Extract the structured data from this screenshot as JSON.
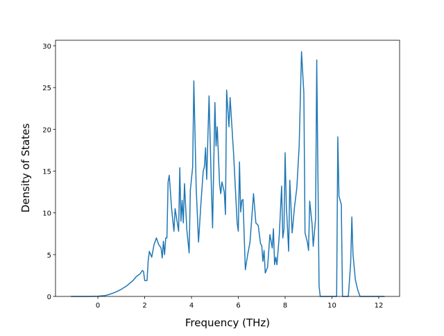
{
  "chart_data": {
    "type": "line",
    "xlabel": "Frequency (THz)",
    "ylabel": "Density of States",
    "x": [
      -1.15,
      -0.5,
      0,
      0.3,
      0.5,
      0.75,
      1.0,
      1.25,
      1.5,
      1.65,
      1.8,
      1.9,
      1.95,
      2.0,
      2.1,
      2.15,
      2.2,
      2.3,
      2.4,
      2.5,
      2.6,
      2.7,
      2.75,
      2.8,
      2.85,
      2.9,
      2.95,
      3.0,
      3.05,
      3.15,
      3.25,
      3.3,
      3.45,
      3.5,
      3.55,
      3.6,
      3.65,
      3.7,
      3.8,
      3.9,
      3.95,
      4.05,
      4.1,
      4.2,
      4.3,
      4.4,
      4.5,
      4.55,
      4.6,
      4.65,
      4.75,
      4.85,
      4.9,
      5.0,
      5.05,
      5.1,
      5.2,
      5.25,
      5.3,
      5.4,
      5.45,
      5.5,
      5.6,
      5.65,
      5.8,
      5.95,
      6.0,
      6.05,
      6.1,
      6.15,
      6.2,
      6.3,
      6.4,
      6.5,
      6.65,
      6.75,
      6.85,
      6.95,
      7.0,
      7.05,
      7.1,
      7.15,
      7.25,
      7.35,
      7.45,
      7.5,
      7.55,
      7.6,
      7.65,
      7.75,
      7.85,
      7.9,
      7.95,
      8.0,
      8.05,
      8.15,
      8.2,
      8.3,
      8.4,
      8.5,
      8.6,
      8.7,
      8.8,
      8.85,
      8.95,
      9.0,
      9.05,
      9.15,
      9.2,
      9.3,
      9.35,
      9.45,
      9.5,
      10.2,
      10.25,
      10.3,
      10.4,
      10.45,
      10.7,
      10.8,
      10.85,
      10.9,
      11.0,
      11.1,
      11.2,
      12.25
    ],
    "series": [
      {
        "color": "#1f77b4",
        "values": [
          0,
          0,
          0.02,
          0.1,
          0.25,
          0.5,
          0.85,
          1.3,
          1.9,
          2.4,
          2.7,
          3.1,
          3.0,
          1.9,
          1.9,
          4.3,
          5.4,
          4.7,
          6.2,
          7.0,
          6.2,
          5.8,
          4.6,
          6.6,
          5.0,
          7.0,
          7.0,
          13.7,
          14.5,
          10.5,
          7.8,
          10.5,
          7.8,
          15.4,
          9,
          11.5,
          8.8,
          13.5,
          8,
          5.2,
          12.7,
          15.5,
          25.8,
          13,
          6.5,
          11,
          15,
          15.5,
          17.8,
          14,
          24,
          13,
          8.2,
          23.2,
          18,
          20.3,
          13.4,
          12.3,
          13.7,
          12.5,
          9.8,
          24.7,
          20.3,
          23.8,
          17,
          8.8,
          7.8,
          16.1,
          10.1,
          11.5,
          11.6,
          3.2,
          5,
          6.5,
          12.3,
          8.8,
          8.5,
          6.3,
          6.1,
          4.2,
          5.5,
          2.8,
          3.5,
          7.4,
          5.8,
          8.1,
          3.8,
          4.7,
          3.8,
          7.3,
          13.2,
          7,
          8,
          17.2,
          11,
          5.4,
          13.9,
          7.6,
          10.7,
          13,
          18,
          29.3,
          24.3,
          7.6,
          6.5,
          5.5,
          11.4,
          8.7,
          6,
          9.3,
          28.3,
          1.2,
          0,
          0,
          19.1,
          12,
          11,
          0,
          0,
          4,
          9.5,
          5,
          2,
          0.8,
          0,
          0
        ]
      }
    ],
    "xlim": [
      -1.81,
      12.89
    ],
    "ylim": [
      0,
      30.66
    ],
    "xticks": [
      0,
      2,
      4,
      6,
      8,
      10,
      12
    ],
    "yticks": [
      0,
      5,
      10,
      15,
      20,
      25,
      30
    ]
  }
}
